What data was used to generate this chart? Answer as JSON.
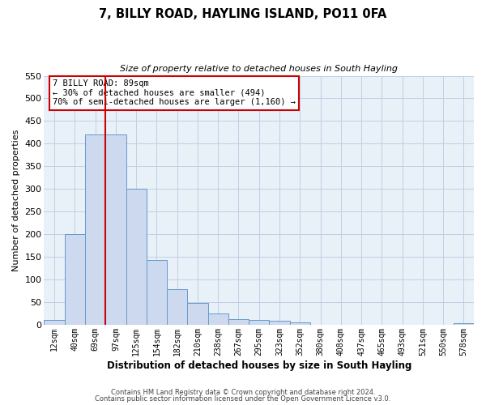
{
  "title": "7, BILLY ROAD, HAYLING ISLAND, PO11 0FA",
  "subtitle": "Size of property relative to detached houses in South Hayling",
  "xlabel": "Distribution of detached houses by size in South Hayling",
  "ylabel": "Number of detached properties",
  "bar_labels": [
    "12sqm",
    "40sqm",
    "69sqm",
    "97sqm",
    "125sqm",
    "154sqm",
    "182sqm",
    "210sqm",
    "238sqm",
    "267sqm",
    "295sqm",
    "323sqm",
    "352sqm",
    "380sqm",
    "408sqm",
    "437sqm",
    "465sqm",
    "493sqm",
    "521sqm",
    "550sqm",
    "578sqm"
  ],
  "bar_values": [
    10,
    200,
    420,
    420,
    300,
    143,
    78,
    48,
    25,
    13,
    10,
    8,
    5,
    0,
    0,
    0,
    0,
    0,
    0,
    0,
    4
  ],
  "bar_color": "#ccd9ee",
  "bar_edgecolor": "#6699cc",
  "vline_x": 3,
  "vline_color": "#cc0000",
  "ylim": [
    0,
    550
  ],
  "yticks": [
    0,
    50,
    100,
    150,
    200,
    250,
    300,
    350,
    400,
    450,
    500,
    550
  ],
  "annotation_title": "7 BILLY ROAD: 89sqm",
  "annotation_line1": "← 30% of detached houses are smaller (494)",
  "annotation_line2": "70% of semi-detached houses are larger (1,160) →",
  "annotation_box_edgecolor": "#cc0000",
  "grid_color": "#c0d0e4",
  "bg_color": "#e8f0f8",
  "footer1": "Contains HM Land Registry data © Crown copyright and database right 2024.",
  "footer2": "Contains public sector information licensed under the Open Government Licence v3.0."
}
